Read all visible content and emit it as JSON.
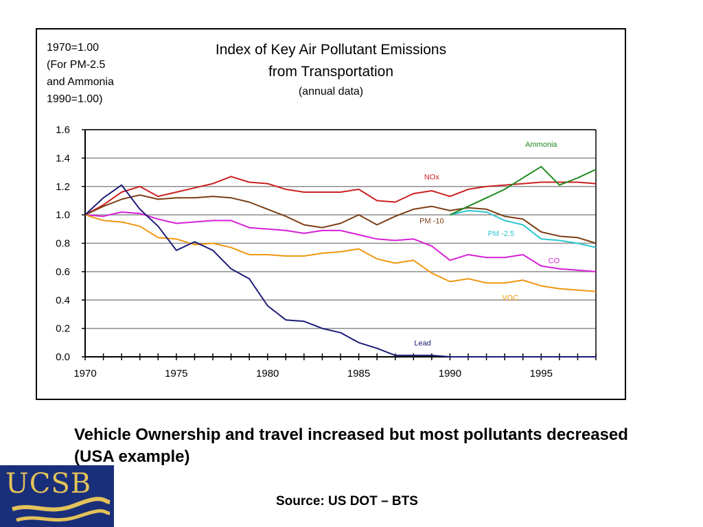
{
  "chart_data": {
    "type": "line",
    "title": "Index of Key Air Pollutant Emissions",
    "title2": "from Transportation",
    "subtitle": "(annual data)",
    "note_lines": [
      "1970=1.00",
      "(For PM-2.5",
      "and Ammonia",
      "1990=1.00)"
    ],
    "xlim": [
      1970,
      1998
    ],
    "ylim": [
      0,
      1.6
    ],
    "grid": true,
    "xtick_labels": [
      "1970",
      "1975",
      "1980",
      "1985",
      "1990",
      "1995"
    ],
    "ytick_labels": [
      "0.0",
      "0.2",
      "0.4",
      "0.6",
      "0.8",
      "1.0",
      "1.2",
      "1.4",
      "1.6"
    ],
    "series": [
      {
        "name": "NOx",
        "color": "#cc1f1f",
        "points": [
          [
            1970,
            1.0
          ],
          [
            1971,
            1.07
          ],
          [
            1972,
            1.16
          ],
          [
            1973,
            1.2
          ],
          [
            1974,
            1.13
          ],
          [
            1975,
            1.16
          ],
          [
            1976,
            1.19
          ],
          [
            1977,
            1.22
          ],
          [
            1978,
            1.27
          ],
          [
            1979,
            1.23
          ],
          [
            1980,
            1.22
          ],
          [
            1981,
            1.18
          ],
          [
            1982,
            1.16
          ],
          [
            1983,
            1.16
          ],
          [
            1984,
            1.16
          ],
          [
            1985,
            1.18
          ],
          [
            1986,
            1.1
          ],
          [
            1987,
            1.09
          ],
          [
            1988,
            1.15
          ],
          [
            1989,
            1.17
          ],
          [
            1990,
            1.13
          ],
          [
            1991,
            1.18
          ],
          [
            1992,
            1.2
          ],
          [
            1993,
            1.21
          ],
          [
            1994,
            1.22
          ],
          [
            1995,
            1.23
          ],
          [
            1996,
            1.23
          ],
          [
            1997,
            1.23
          ],
          [
            1998,
            1.22
          ]
        ]
      },
      {
        "name": "PM -10",
        "color": "#7a3d12",
        "points": [
          [
            1970,
            1.0
          ],
          [
            1971,
            1.06
          ],
          [
            1972,
            1.11
          ],
          [
            1973,
            1.14
          ],
          [
            1974,
            1.11
          ],
          [
            1975,
            1.12
          ],
          [
            1976,
            1.12
          ],
          [
            1977,
            1.13
          ],
          [
            1978,
            1.12
          ],
          [
            1979,
            1.09
          ],
          [
            1980,
            1.04
          ],
          [
            1981,
            0.99
          ],
          [
            1982,
            0.93
          ],
          [
            1983,
            0.91
          ],
          [
            1984,
            0.94
          ],
          [
            1985,
            1.0
          ],
          [
            1986,
            0.93
          ],
          [
            1987,
            0.99
          ],
          [
            1988,
            1.04
          ],
          [
            1989,
            1.06
          ],
          [
            1990,
            1.03
          ],
          [
            1991,
            1.05
          ],
          [
            1992,
            1.04
          ],
          [
            1993,
            0.99
          ],
          [
            1994,
            0.97
          ],
          [
            1995,
            0.88
          ],
          [
            1996,
            0.85
          ],
          [
            1997,
            0.84
          ],
          [
            1998,
            0.8
          ]
        ]
      },
      {
        "name": "CO",
        "color": "#d61fd6",
        "points": [
          [
            1970,
            1.0
          ],
          [
            1971,
            0.99
          ],
          [
            1972,
            1.02
          ],
          [
            1973,
            1.01
          ],
          [
            1974,
            0.97
          ],
          [
            1975,
            0.94
          ],
          [
            1976,
            0.95
          ],
          [
            1977,
            0.96
          ],
          [
            1978,
            0.96
          ],
          [
            1979,
            0.91
          ],
          [
            1980,
            0.9
          ],
          [
            1981,
            0.89
          ],
          [
            1982,
            0.87
          ],
          [
            1983,
            0.89
          ],
          [
            1984,
            0.89
          ],
          [
            1985,
            0.86
          ],
          [
            1986,
            0.83
          ],
          [
            1987,
            0.82
          ],
          [
            1988,
            0.83
          ],
          [
            1989,
            0.78
          ],
          [
            1990,
            0.68
          ],
          [
            1991,
            0.72
          ],
          [
            1992,
            0.7
          ],
          [
            1993,
            0.7
          ],
          [
            1994,
            0.72
          ],
          [
            1995,
            0.64
          ],
          [
            1996,
            0.62
          ],
          [
            1997,
            0.61
          ],
          [
            1998,
            0.6
          ]
        ]
      },
      {
        "name": "VOC",
        "color": "#f0960f",
        "points": [
          [
            1970,
            1.0
          ],
          [
            1971,
            0.96
          ],
          [
            1972,
            0.95
          ],
          [
            1973,
            0.92
          ],
          [
            1974,
            0.84
          ],
          [
            1975,
            0.83
          ],
          [
            1976,
            0.79
          ],
          [
            1977,
            0.8
          ],
          [
            1978,
            0.77
          ],
          [
            1979,
            0.72
          ],
          [
            1980,
            0.72
          ],
          [
            1981,
            0.71
          ],
          [
            1982,
            0.71
          ],
          [
            1983,
            0.73
          ],
          [
            1984,
            0.74
          ],
          [
            1985,
            0.76
          ],
          [
            1986,
            0.69
          ],
          [
            1987,
            0.66
          ],
          [
            1988,
            0.68
          ],
          [
            1989,
            0.59
          ],
          [
            1990,
            0.53
          ],
          [
            1991,
            0.55
          ],
          [
            1992,
            0.52
          ],
          [
            1993,
            0.52
          ],
          [
            1994,
            0.54
          ],
          [
            1995,
            0.5
          ],
          [
            1996,
            0.48
          ],
          [
            1997,
            0.47
          ],
          [
            1998,
            0.46
          ]
        ]
      },
      {
        "name": "Lead",
        "color": "#1b1b78",
        "points": [
          [
            1970,
            1.0
          ],
          [
            1971,
            1.12
          ],
          [
            1972,
            1.21
          ],
          [
            1973,
            1.04
          ],
          [
            1974,
            0.92
          ],
          [
            1975,
            0.75
          ],
          [
            1976,
            0.81
          ],
          [
            1977,
            0.75
          ],
          [
            1978,
            0.62
          ],
          [
            1979,
            0.55
          ],
          [
            1980,
            0.36
          ],
          [
            1981,
            0.26
          ],
          [
            1982,
            0.25
          ],
          [
            1983,
            0.2
          ],
          [
            1984,
            0.17
          ],
          [
            1985,
            0.1
          ],
          [
            1986,
            0.06
          ],
          [
            1987,
            0.01
          ],
          [
            1988,
            0.01
          ],
          [
            1989,
            0.01
          ],
          [
            1990,
            0.0
          ],
          [
            1991,
            0.0
          ],
          [
            1992,
            0.0
          ],
          [
            1993,
            0.0
          ],
          [
            1994,
            0.0
          ],
          [
            1995,
            0.0
          ],
          [
            1996,
            0.0
          ],
          [
            1997,
            0.0
          ],
          [
            1998,
            0.0
          ]
        ]
      },
      {
        "name": "PM -2.5",
        "color": "#2cc5cf",
        "points": [
          [
            1990,
            1.0
          ],
          [
            1991,
            1.03
          ],
          [
            1992,
            1.02
          ],
          [
            1993,
            0.96
          ],
          [
            1994,
            0.93
          ],
          [
            1995,
            0.83
          ],
          [
            1996,
            0.82
          ],
          [
            1997,
            0.8
          ],
          [
            1998,
            0.77
          ]
        ]
      },
      {
        "name": "Ammonia",
        "color": "#1f8a1f",
        "points": [
          [
            1990,
            1.0
          ],
          [
            1991,
            1.06
          ],
          [
            1992,
            1.12
          ],
          [
            1993,
            1.18
          ],
          [
            1994,
            1.26
          ],
          [
            1995,
            1.34
          ],
          [
            1996,
            1.21
          ],
          [
            1997,
            1.26
          ],
          [
            1998,
            1.32
          ]
        ]
      }
    ]
  },
  "caption": "Vehicle Ownership and travel increased but most pollutants decreased (USA example)",
  "source": "Source: US DOT – BTS",
  "logo": {
    "text": "UCSB",
    "bg_color": "#1a2f7a",
    "text_color": "#e3c25a"
  }
}
